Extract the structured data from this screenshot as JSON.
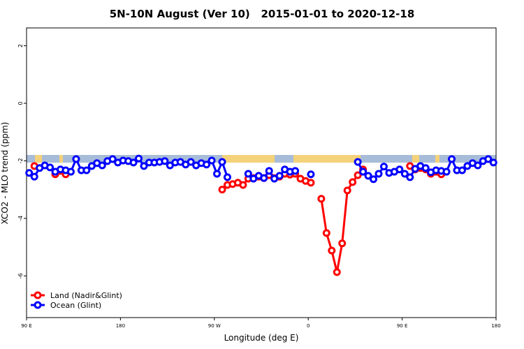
{
  "chart_data": {
    "type": "line",
    "title": "5N-10N August (Ver 10)   2015-01-01 to 2020-12-18",
    "x_label": "Longitude (deg E)",
    "y_label": "XCO2 - MLO trend (ppm)",
    "xlim": [
      90,
      540
    ],
    "ylim": [
      -7.45,
      2.62
    ],
    "xticks": [
      {
        "value": 90,
        "label": "90 E"
      },
      180,
      {
        "value": 270,
        "label": "90 W"
      },
      {
        "value": 360,
        "label": "0"
      },
      {
        "value": 450,
        "label": "90 E"
      },
      {
        "value": 540,
        "label": "180"
      }
    ],
    "yticks": [
      2,
      0,
      -2,
      -4,
      -6
    ],
    "legend": "bottom-left",
    "x": [
      92.5,
      97.5,
      102.5,
      107.5,
      112.5,
      117.5,
      122.5,
      127.5,
      132.5,
      137.5,
      142.5,
      147.5,
      152.5,
      157.5,
      162.5,
      167.5,
      172.5,
      177.5,
      182.5,
      187.5,
      192.5,
      197.5,
      202.5,
      207.5,
      212.5,
      217.5,
      222.5,
      227.5,
      232.5,
      237.5,
      242.5,
      247.5,
      252.5,
      257.5,
      262.5,
      267.5,
      272.5,
      277.5,
      282.5,
      287.5,
      292.5,
      297.5,
      302.5,
      307.5,
      312.5,
      317.5,
      322.5,
      327.5,
      332.5,
      337.5,
      342.5,
      347.5,
      352.5,
      357.5,
      362.5,
      367.5,
      372.5,
      377.5,
      382.5,
      387.5,
      392.5,
      397.5,
      402.5,
      407.5,
      412.5,
      417.5,
      422.5,
      427.5,
      432.5,
      437.5,
      442.5,
      447.5,
      452.5,
      457.5,
      462.5,
      467.5,
      472.5,
      477.5,
      482.5,
      487.5,
      492.5,
      497.5,
      502.5,
      507.5,
      512.5,
      517.5,
      522.5,
      527.5,
      532.5,
      537.5
    ],
    "series": [
      {
        "name": "Land (Nadir&Glint)",
        "color": "#ff0000",
        "values": [
          null,
          -2.18,
          null,
          null,
          null,
          -2.47,
          -2.35,
          -2.47,
          null,
          null,
          null,
          null,
          null,
          null,
          null,
          null,
          null,
          null,
          null,
          null,
          null,
          null,
          null,
          null,
          null,
          null,
          null,
          null,
          null,
          null,
          null,
          null,
          null,
          null,
          null,
          null,
          null,
          -3.0,
          -2.84,
          -2.81,
          -2.76,
          -2.84,
          -2.62,
          -2.6,
          -2.55,
          -2.6,
          -2.5,
          -2.6,
          -2.55,
          -2.45,
          -2.48,
          -2.45,
          -2.62,
          -2.7,
          -2.76,
          null,
          -3.32,
          -4.51,
          -5.12,
          -5.87,
          -4.87,
          -3.03,
          -2.74,
          -2.5,
          -2.3,
          null,
          null,
          null,
          null,
          null,
          null,
          null,
          null,
          -2.18,
          -2.3,
          -2.25,
          -2.3,
          -2.45,
          -2.38,
          -2.47,
          null,
          null,
          null,
          null,
          null,
          null,
          null,
          null,
          null,
          null
        ]
      },
      {
        "name": "Ocean (Glint)",
        "color": "#0000ff",
        "values": [
          -2.42,
          -2.55,
          -2.25,
          -2.16,
          -2.23,
          -2.38,
          -2.3,
          -2.33,
          -2.38,
          -1.94,
          -2.33,
          -2.33,
          -2.18,
          -2.08,
          -2.16,
          -2.01,
          -1.94,
          -2.06,
          -1.99,
          -2.01,
          -2.06,
          -1.92,
          -2.18,
          -2.06,
          -2.06,
          -2.04,
          -2.01,
          -2.16,
          -2.06,
          -2.04,
          -2.13,
          -2.04,
          -2.16,
          -2.08,
          -2.13,
          -1.99,
          -2.45,
          -2.04,
          -2.57,
          null,
          null,
          null,
          -2.45,
          -2.62,
          -2.52,
          -2.6,
          -2.35,
          -2.62,
          -2.52,
          -2.3,
          -2.38,
          -2.35,
          null,
          null,
          -2.47,
          null,
          null,
          null,
          null,
          null,
          null,
          null,
          null,
          -2.04,
          -2.38,
          -2.52,
          -2.64,
          -2.45,
          -2.2,
          -2.42,
          -2.38,
          -2.3,
          -2.45,
          -2.57,
          -2.28,
          -2.18,
          -2.25,
          -2.4,
          -2.33,
          -2.35,
          -2.38,
          -1.94,
          -2.33,
          -2.33,
          -2.18,
          -2.08,
          -2.16,
          -2.01,
          -1.94,
          -2.06
        ]
      }
    ]
  }
}
